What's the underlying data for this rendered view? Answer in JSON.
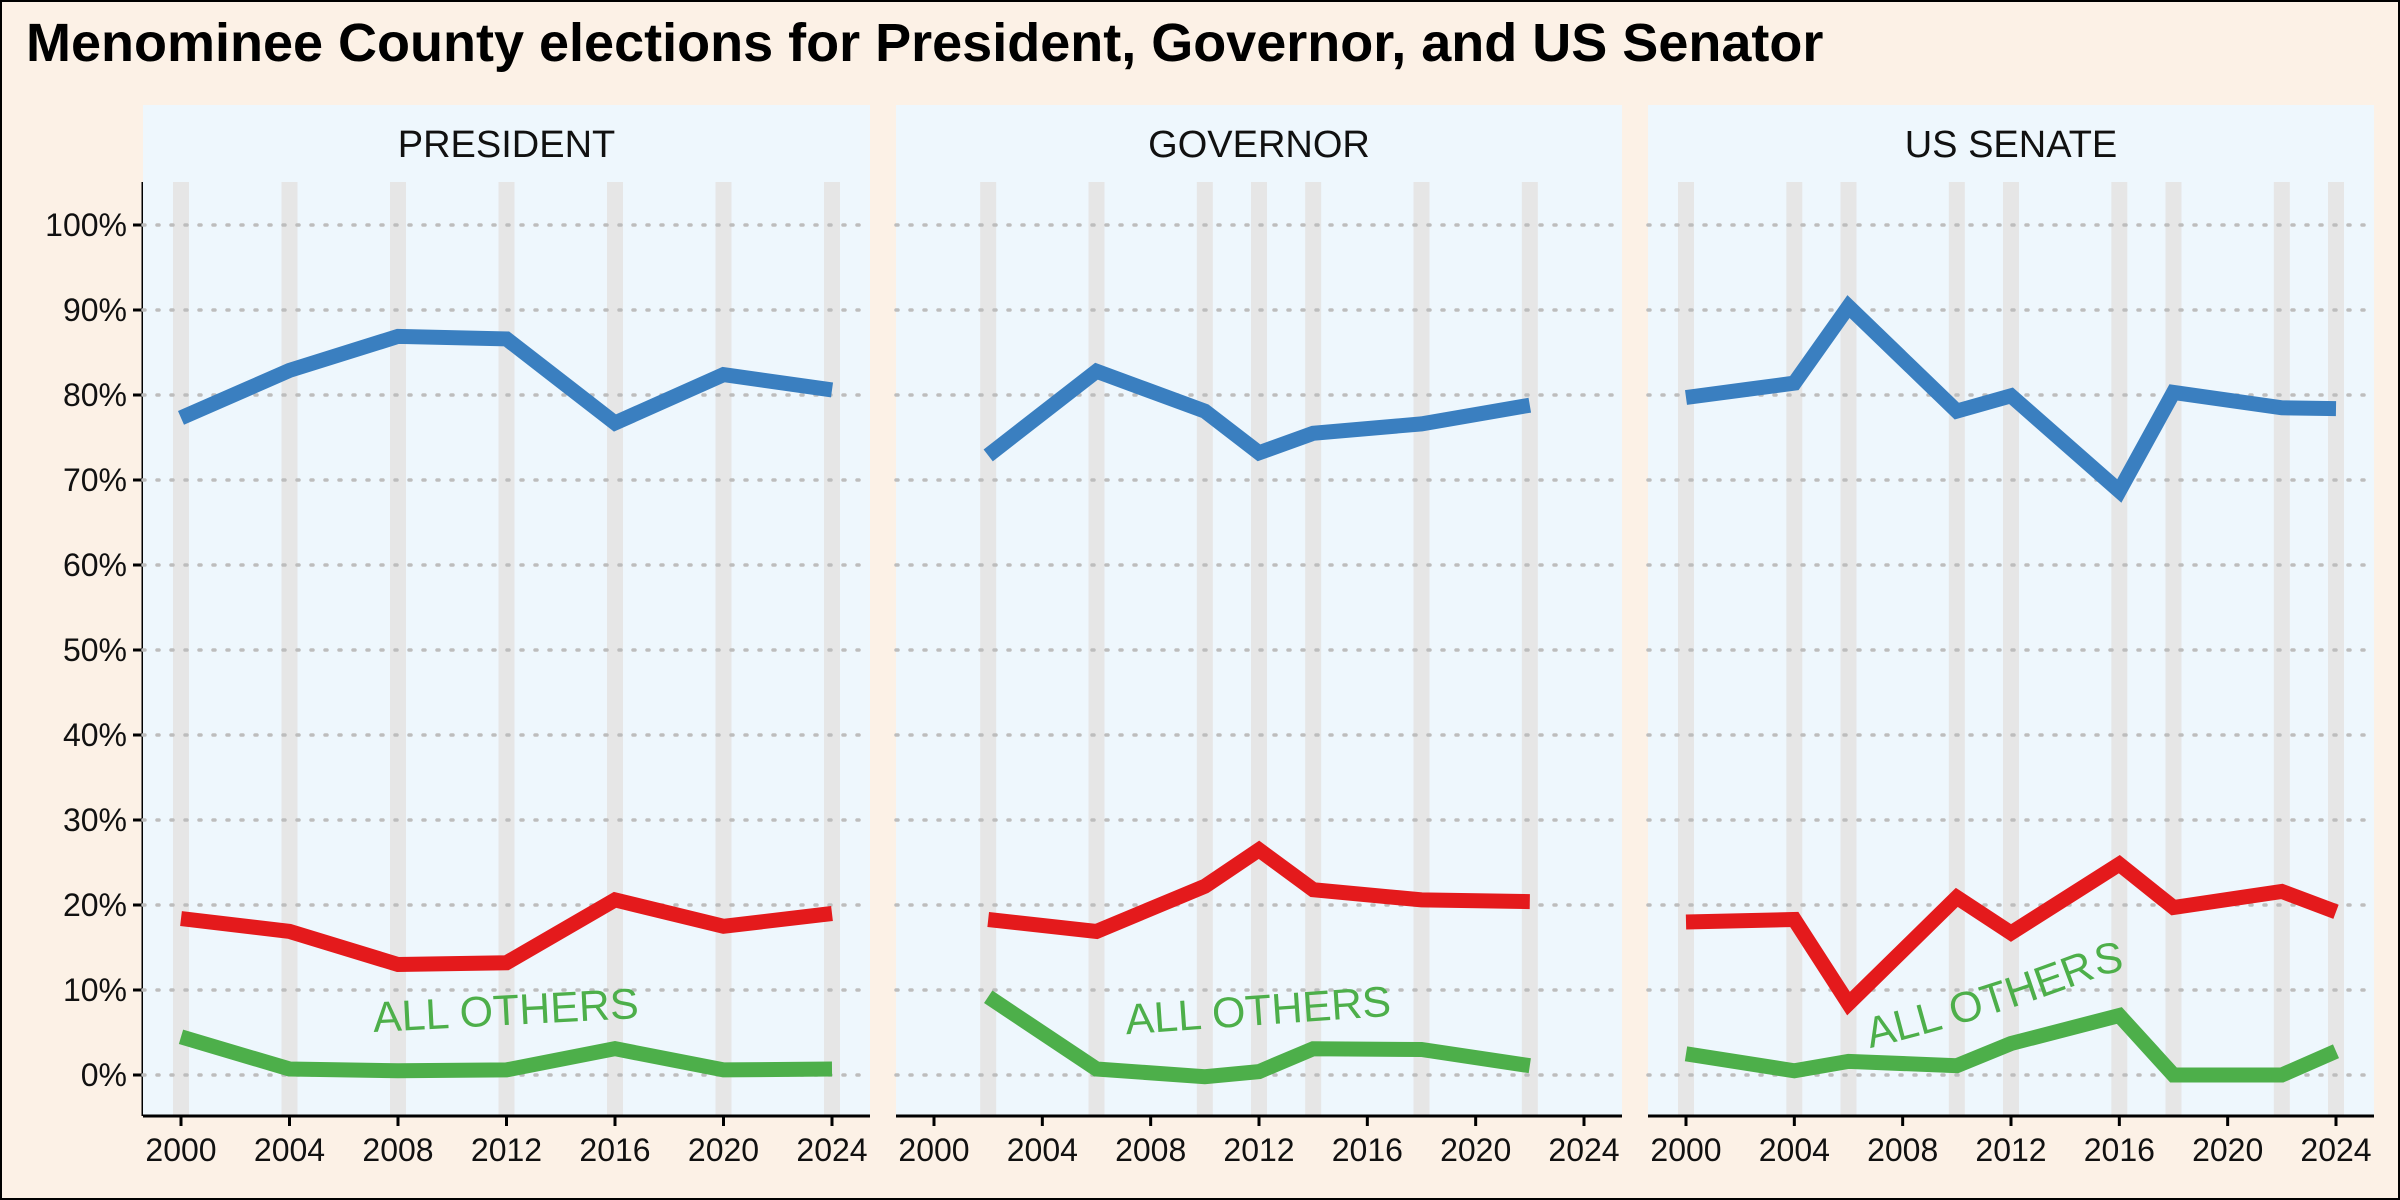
{
  "title": "Menominee County elections for President, Governor, and US Senator",
  "colors": {
    "background": "#fcf1e6",
    "panel": "#eef7fd",
    "election_band": "#e6e6e6",
    "grid": "#bdbdbd",
    "democratic": "#3a7fc0",
    "republican": "#e41a1c",
    "others": "#4daf4a"
  },
  "chart_data": [
    {
      "type": "line",
      "panel": "PRESIDENT",
      "ylim": [
        0,
        1
      ],
      "xlim": [
        2000,
        2024
      ],
      "grid": true,
      "x": [
        2000,
        2004,
        2008,
        2012,
        2016,
        2020,
        2024
      ],
      "series": [
        {
          "color": "#3a7fc0",
          "values": [
            0.773,
            0.829,
            0.869,
            0.866,
            0.767,
            0.824,
            0.806
          ]
        },
        {
          "color": "#e41a1c",
          "values": [
            0.184,
            0.169,
            0.13,
            0.132,
            0.206,
            0.175,
            0.19
          ]
        },
        {
          "name": "ALL OTHERS",
          "color": "#4daf4a",
          "values": [
            0.045,
            0.007,
            0.005,
            0.006,
            0.031,
            0.006,
            0.007
          ]
        }
      ]
    },
    {
      "type": "line",
      "panel": "GOVERNOR",
      "ylim": [
        0,
        1
      ],
      "xlim": [
        2000,
        2024
      ],
      "grid": true,
      "x": [
        2002,
        2006,
        2010,
        2012,
        2014,
        2018,
        2022
      ],
      "series": [
        {
          "color": "#3a7fc0",
          "values": [
            0.729,
            0.828,
            0.781,
            0.732,
            0.755,
            0.766,
            0.788
          ]
        },
        {
          "color": "#e41a1c",
          "values": [
            0.183,
            0.169,
            0.222,
            0.265,
            0.218,
            0.206,
            0.204
          ]
        },
        {
          "name": "ALL OTHERS",
          "color": "#4daf4a",
          "values": [
            0.092,
            0.007,
            -0.002,
            0.004,
            0.031,
            0.03,
            0.011
          ]
        }
      ]
    },
    {
      "type": "line",
      "panel": "US SENATE",
      "ylim": [
        0,
        1
      ],
      "xlim": [
        2000,
        2024
      ],
      "grid": true,
      "x": [
        2000,
        2004,
        2006,
        2010,
        2012,
        2016,
        2018,
        2022,
        2024
      ],
      "series": [
        {
          "color": "#3a7fc0",
          "values": [
            0.797,
            0.814,
            0.904,
            0.781,
            0.799,
            0.687,
            0.803,
            0.785,
            0.784
          ]
        },
        {
          "color": "#e41a1c",
          "values": [
            0.18,
            0.183,
            0.084,
            0.209,
            0.167,
            0.248,
            0.197,
            0.216,
            0.192
          ]
        },
        {
          "name": "ALL OTHERS",
          "color": "#4daf4a",
          "values": [
            0.025,
            0.005,
            0.016,
            0.011,
            0.037,
            0.07,
            0.0,
            0.0,
            0.028
          ]
        }
      ]
    }
  ],
  "y_tick_labels": [
    "0%",
    "10%",
    "20%",
    "30%",
    "40%",
    "50%",
    "60%",
    "70%",
    "80%",
    "90%",
    "100%"
  ],
  "x_tick_labels": [
    "2000",
    "2004",
    "2008",
    "2012",
    "2016",
    "2020",
    "2024"
  ],
  "others_label": "ALL OTHERS"
}
